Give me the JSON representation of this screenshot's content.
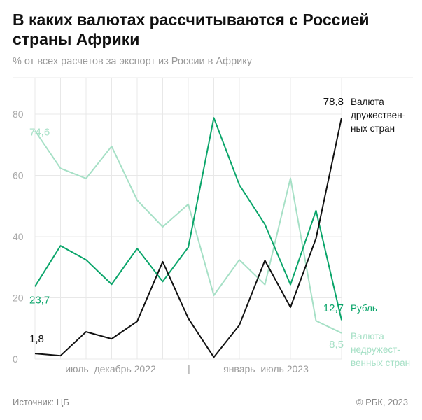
{
  "header": {
    "title": "В каких валютах рассчитываются с Россией страны Африки",
    "subtitle": "% от всех расчетов за экспорт из России в Африку"
  },
  "footer": {
    "source": "Источник: ЦБ",
    "copyright": "© РБК, 2023"
  },
  "chart_data": {
    "type": "line",
    "title": "В каких валютах рассчитываются с Россией страны Африки",
    "subtitle": "% от всех расчетов за экспорт из России в Африку",
    "x_period_labels": [
      "июль–декабрь 2022",
      "|",
      "январь–июль 2023"
    ],
    "x_count": 13,
    "ylim": [
      0,
      90
    ],
    "yticks": [
      0,
      20,
      40,
      60,
      80
    ],
    "grid": true,
    "series": [
      {
        "name": "Валюта недружест-венных стран",
        "name_lines": [
          "Валюта",
          "недружест-",
          "венных стран"
        ],
        "color": "#a6e0c6",
        "values": [
          74.6,
          62.3,
          59.0,
          69.5,
          51.9,
          43.2,
          50.6,
          20.8,
          32.4,
          24.3,
          59.1,
          12.5,
          8.5
        ],
        "first_label": "74,6",
        "last_label": "8,5"
      },
      {
        "name": "Рубль",
        "name_lines": [
          "Рубль"
        ],
        "color": "#0aa56a",
        "values": [
          23.7,
          37.0,
          32.4,
          24.4,
          36.1,
          25.3,
          36.5,
          78.8,
          56.9,
          44.0,
          24.3,
          48.5,
          12.7
        ],
        "first_label": "23,7",
        "last_label": "12,7"
      },
      {
        "name": "Валюта дружествен-ных стран",
        "name_lines": [
          "Валюта",
          "дружествен-",
          "ных стран"
        ],
        "color": "#111111",
        "values": [
          1.8,
          1.1,
          8.9,
          6.6,
          12.3,
          31.8,
          13.3,
          0.6,
          11.1,
          32.2,
          16.9,
          39.4,
          78.8
        ],
        "first_label": "1,8",
        "last_label": "78,8"
      }
    ]
  }
}
